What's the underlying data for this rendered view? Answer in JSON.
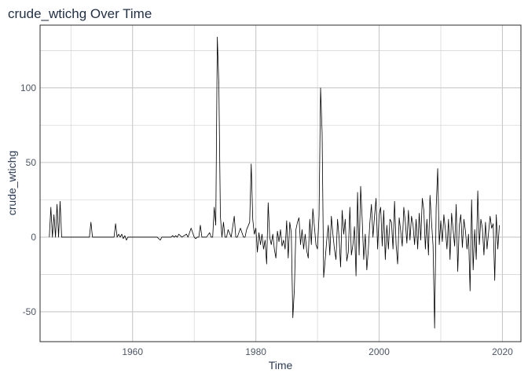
{
  "chart_data": {
    "type": "line",
    "title": "crude_wtichg Over Time",
    "xlabel": "Time",
    "ylabel": "crude_wtichg",
    "xlim": [
      1945,
      2023
    ],
    "ylim": [
      -70,
      142
    ],
    "xticks": [
      1960,
      1980,
      2000,
      2020
    ],
    "yticks": [
      -50,
      0,
      50,
      100
    ],
    "grid": true,
    "legend": "none",
    "colors": {
      "line": "#000000",
      "grid": "#c8c8c8",
      "panel_border": "#2b2b2b",
      "background": "#ffffff"
    },
    "series": [
      {
        "x": [
          1946.5,
          1946.75,
          1947,
          1947.25,
          1947.5,
          1947.75,
          1948,
          1948.25,
          1948.5,
          1948.75,
          1953,
          1953.25,
          1953.5,
          1957,
          1957.25,
          1957.5,
          1957.75,
          1958,
          1958.25,
          1958.5,
          1958.75,
          1959,
          1959.25,
          1959.5,
          1960,
          1964,
          1964.5,
          1964.75,
          1965,
          1966,
          1966.25,
          1966.5,
          1966.75,
          1967,
          1967.25,
          1967.5,
          1968,
          1968.75,
          1969,
          1969.5,
          1970,
          1970.25,
          1970.5,
          1970.75,
          1971,
          1971.25,
          1972,
          1972.5,
          1972.75,
          1973,
          1973.25,
          1973.5,
          1973.75,
          1974,
          1974.25,
          1974.5,
          1974.75,
          1975,
          1975.25,
          1975.5,
          1976,
          1976.5,
          1976.75,
          1977,
          1977.5,
          1978,
          1978.25,
          1978.5,
          1979,
          1979.25,
          1979.5,
          1979.75,
          1980,
          1980.25,
          1980.5,
          1980.75,
          1981,
          1981.25,
          1981.5,
          1981.75,
          1982,
          1982.25,
          1982.5,
          1982.75,
          1983,
          1983.25,
          1983.5,
          1983.75,
          1984,
          1984.25,
          1984.5,
          1984.75,
          1985,
          1985.25,
          1985.5,
          1985.75,
          1986,
          1986.25,
          1986.5,
          1986.75,
          1987,
          1987.25,
          1987.5,
          1987.75,
          1988,
          1988.25,
          1988.5,
          1988.75,
          1989,
          1989.25,
          1989.5,
          1989.75,
          1990,
          1990.25,
          1990.5,
          1990.75,
          1991,
          1991.25,
          1991.5,
          1991.75,
          1992,
          1992.25,
          1992.5,
          1992.75,
          1993,
          1993.25,
          1993.5,
          1993.75,
          1994,
          1994.25,
          1994.5,
          1994.75,
          1995,
          1995.25,
          1995.5,
          1995.75,
          1996,
          1996.25,
          1996.5,
          1996.75,
          1997,
          1997.25,
          1997.5,
          1997.75,
          1998,
          1998.25,
          1998.5,
          1998.75,
          1999,
          1999.25,
          1999.5,
          1999.75,
          2000,
          2000.25,
          2000.5,
          2000.75,
          2001,
          2001.25,
          2001.5,
          2001.75,
          2002,
          2002.25,
          2002.5,
          2002.75,
          2003,
          2003.25,
          2003.5,
          2003.75,
          2004,
          2004.25,
          2004.5,
          2004.75,
          2005,
          2005.25,
          2005.5,
          2005.75,
          2006,
          2006.25,
          2006.5,
          2006.75,
          2007,
          2007.25,
          2007.5,
          2007.75,
          2008,
          2008.25,
          2008.5,
          2008.75,
          2009,
          2009.25,
          2009.5,
          2009.75,
          2010,
          2010.25,
          2010.5,
          2010.75,
          2011,
          2011.25,
          2011.5,
          2011.75,
          2012,
          2012.25,
          2012.5,
          2012.75,
          2013,
          2013.25,
          2013.5,
          2013.75,
          2014,
          2014.25,
          2014.5,
          2014.75,
          2015,
          2015.25,
          2015.5,
          2015.75,
          2016,
          2016.25,
          2016.5,
          2016.75,
          2017,
          2017.25,
          2017.5,
          2017.75,
          2018,
          2018.25,
          2018.5,
          2018.75,
          2019,
          2019.25,
          2019.5
        ],
        "y": [
          0,
          20,
          0,
          15,
          0,
          22,
          0,
          24,
          0,
          0,
          0,
          10,
          0,
          0,
          9,
          0,
          2,
          0,
          2,
          -1,
          1,
          -2,
          0,
          0,
          0,
          0,
          -2,
          0,
          0,
          0,
          0,
          1,
          0,
          1,
          0,
          2,
          0,
          2,
          0,
          6,
          0,
          -1,
          0,
          0,
          8,
          0,
          0,
          3,
          0,
          0,
          20,
          8,
          134,
          102,
          14,
          0,
          10,
          0,
          0,
          5,
          0,
          14,
          0,
          0,
          6,
          0,
          0,
          5,
          10,
          49,
          12,
          2,
          6,
          -10,
          3,
          -5,
          2,
          -8,
          -2,
          -18,
          23,
          0,
          -5,
          2,
          -8,
          -14,
          4,
          -3,
          5,
          -6,
          -2,
          -8,
          11,
          -14,
          10,
          3,
          -54,
          -35,
          5,
          10,
          13,
          -5,
          5,
          -8,
          2,
          -9,
          -14,
          12,
          -5,
          19,
          7,
          -5,
          -8,
          14,
          100,
          70,
          -27,
          -15,
          -2,
          8,
          -12,
          14,
          2,
          -8,
          -15,
          12,
          0,
          -20,
          18,
          2,
          12,
          -16,
          -10,
          20,
          -12,
          -5,
          7,
          -26,
          30,
          -12,
          34,
          12,
          -15,
          2,
          -22,
          -8,
          10,
          22,
          0,
          14,
          26,
          -8,
          15,
          20,
          -6,
          18,
          -15,
          8,
          -8,
          12,
          10,
          -8,
          24,
          -5,
          -18,
          13,
          4,
          -6,
          20,
          10,
          -4,
          18,
          -2,
          14,
          8,
          -5,
          12,
          -8,
          16,
          -2,
          26,
          18,
          -8,
          12,
          -12,
          28,
          10,
          -6,
          -61,
          20,
          46,
          -5,
          11,
          -3,
          15,
          5,
          -8,
          12,
          -15,
          16,
          5,
          -6,
          22,
          -23,
          8,
          15,
          -7,
          12,
          4,
          -8,
          2,
          -36,
          25,
          -22,
          5,
          -15,
          31,
          -5,
          12,
          6,
          -12,
          10,
          -8,
          3,
          14,
          6,
          9,
          -29,
          15,
          -8,
          8
        ]
      }
    ]
  }
}
